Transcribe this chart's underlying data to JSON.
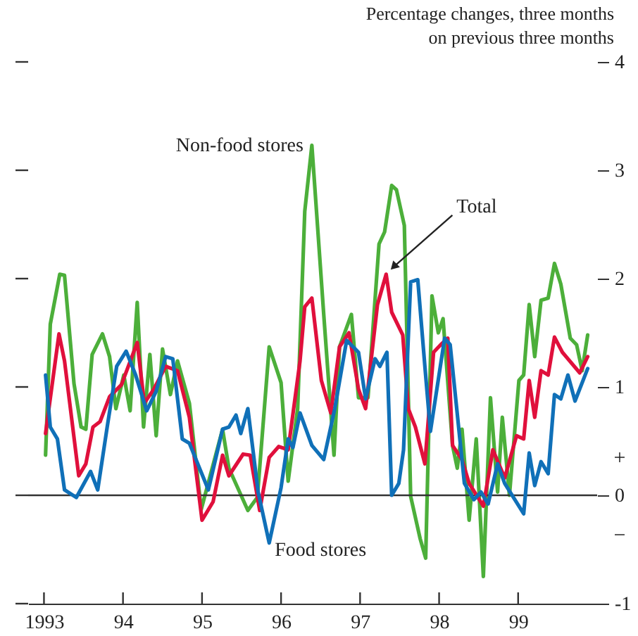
{
  "chart_data": {
    "type": "line",
    "ylabel": "Percentage changes, three months on previous three months",
    "xlim": [
      1992.8,
      2000
    ],
    "xticks": [
      1993,
      {
        "value": 1994,
        "label": "94"
      },
      {
        "value": 1995,
        "label": "95"
      },
      {
        "value": 1996,
        "label": "96"
      },
      {
        "value": 1997,
        "label": "97"
      },
      {
        "value": 1998,
        "label": "98"
      },
      {
        "value": 1999,
        "label": "99"
      }
    ],
    "ylim": [
      -1,
      4
    ],
    "yticks": [
      -1,
      0,
      1,
      2,
      3,
      4
    ],
    "grid": false,
    "marker": "none",
    "line_style": "solid",
    "ref_lines": [
      {
        "axis": "y",
        "value": 0,
        "color": "#333333"
      }
    ],
    "annotations": [
      {
        "text": "Non-food stores",
        "x": 1996.39,
        "y": 3.23
      },
      {
        "text": "Total",
        "x": 1997.33,
        "y": 2.04
      },
      {
        "text": "Food stores",
        "x": 1995.85,
        "y": -0.44
      },
      "+",
      "−"
    ],
    "series": [
      {
        "color": "#4caf3a",
        "x": [
          1993.02,
          1993.08,
          1993.2,
          1993.26,
          1993.38,
          1993.47,
          1993.53,
          1993.61,
          1993.74,
          1993.83,
          1993.91,
          1994.01,
          1994.09,
          1994.18,
          1994.26,
          1994.34,
          1994.42,
          1994.5,
          1994.6,
          1994.69,
          1994.84,
          1994.99,
          1995.26,
          1995.34,
          1995.58,
          1995.7,
          1995.85,
          1996.0,
          1996.09,
          1996.21,
          1996.3,
          1996.39,
          1996.54,
          1996.67,
          1996.74,
          1996.89,
          1996.98,
          1997.1,
          1997.24,
          1997.31,
          1997.4,
          1997.46,
          1997.56,
          1997.64,
          1997.76,
          1997.83,
          1997.91,
          1997.99,
          1998.05,
          1998.17,
          1998.23,
          1998.29,
          1998.38,
          1998.47,
          1998.56,
          1998.65,
          1998.74,
          1998.8,
          1998.89,
          1999.01,
          1999.07,
          1999.14,
          1999.21,
          1999.29,
          1999.38,
          1999.46,
          1999.54,
          1999.66,
          1999.74,
          1999.81,
          1999.88
        ],
        "values": [
          0.37,
          1.58,
          2.04,
          2.03,
          1.03,
          0.63,
          0.61,
          1.3,
          1.49,
          1.28,
          0.8,
          1.11,
          0.78,
          1.78,
          0.63,
          1.3,
          0.55,
          1.35,
          0.93,
          1.24,
          0.85,
          -0.13,
          0.61,
          0.25,
          -0.14,
          -0.02,
          1.37,
          1.04,
          0.13,
          0.8,
          2.62,
          3.23,
          1.67,
          0.37,
          1.37,
          1.67,
          0.9,
          0.9,
          2.32,
          2.43,
          2.86,
          2.82,
          2.49,
          -0.01,
          -0.4,
          -0.58,
          1.84,
          1.5,
          1.63,
          0.46,
          0.25,
          0.61,
          -0.23,
          0.52,
          -0.75,
          0.9,
          0.03,
          0.72,
          0.0,
          1.06,
          1.11,
          1.76,
          1.28,
          1.8,
          1.82,
          2.14,
          1.95,
          1.45,
          1.39,
          1.15,
          1.48
        ]
      },
      {
        "color": "#e0103c",
        "x": [
          1993.02,
          1993.19,
          1993.26,
          1993.44,
          1993.53,
          1993.62,
          1993.71,
          1993.83,
          1993.98,
          1994.18,
          1994.27,
          1994.39,
          1994.54,
          1994.69,
          1994.84,
          1995.0,
          1995.14,
          1995.26,
          1995.34,
          1995.52,
          1995.61,
          1995.73,
          1995.85,
          1995.97,
          1996.09,
          1996.24,
          1996.3,
          1996.39,
          1996.51,
          1996.63,
          1996.74,
          1996.86,
          1996.98,
          1997.07,
          1997.22,
          1997.33,
          1997.4,
          1997.54,
          1997.61,
          1997.7,
          1997.82,
          1997.93,
          1998.02,
          1998.11,
          1998.17,
          1998.29,
          1998.38,
          1998.56,
          1998.68,
          1998.83,
          1998.98,
          1999.07,
          1999.14,
          1999.21,
          1999.29,
          1999.38,
          1999.46,
          1999.56,
          1999.78,
          1999.88
        ],
        "values": [
          0.57,
          1.49,
          1.24,
          0.18,
          0.29,
          0.63,
          0.68,
          0.91,
          1.02,
          1.41,
          0.85,
          0.98,
          1.19,
          1.15,
          0.72,
          -0.23,
          -0.06,
          0.37,
          0.18,
          0.38,
          0.37,
          -0.14,
          0.35,
          0.45,
          0.42,
          1.24,
          1.74,
          1.82,
          1.06,
          0.76,
          1.37,
          1.5,
          0.98,
          0.8,
          1.76,
          2.04,
          1.69,
          1.48,
          0.8,
          0.63,
          0.29,
          1.32,
          1.39,
          1.45,
          0.46,
          0.33,
          0.11,
          -0.1,
          0.42,
          0.16,
          0.55,
          0.52,
          1.06,
          0.72,
          1.15,
          1.11,
          1.46,
          1.32,
          1.13,
          1.28
        ]
      },
      {
        "color": "#1070b8",
        "x": [
          1993.02,
          1993.08,
          1993.17,
          1993.26,
          1993.41,
          1993.59,
          1993.68,
          1993.8,
          1993.92,
          1994.04,
          1994.16,
          1994.3,
          1994.42,
          1994.54,
          1994.63,
          1994.75,
          1994.84,
          1995.08,
          1995.26,
          1995.34,
          1995.43,
          1995.49,
          1995.58,
          1995.71,
          1995.85,
          1996.0,
          1996.09,
          1996.15,
          1996.24,
          1996.39,
          1996.54,
          1996.68,
          1996.83,
          1996.98,
          1997.07,
          1997.19,
          1997.25,
          1997.34,
          1997.4,
          1997.49,
          1997.55,
          1997.64,
          1997.73,
          1997.82,
          1997.89,
          1998.07,
          1998.14,
          1998.32,
          1998.44,
          1998.53,
          1998.62,
          1998.74,
          1998.83,
          1999.07,
          1999.14,
          1999.21,
          1999.29,
          1999.38,
          1999.46,
          1999.54,
          1999.63,
          1999.72,
          1999.88
        ],
        "values": [
          1.11,
          0.63,
          0.52,
          0.05,
          -0.02,
          0.22,
          0.05,
          0.63,
          1.19,
          1.33,
          1.11,
          0.78,
          0.96,
          1.28,
          1.26,
          0.52,
          0.48,
          0.05,
          0.61,
          0.63,
          0.74,
          0.57,
          0.8,
          0.03,
          -0.44,
          0.07,
          0.52,
          0.44,
          0.76,
          0.46,
          0.33,
          0.8,
          1.43,
          1.32,
          0.89,
          1.26,
          1.19,
          1.32,
          0.0,
          0.11,
          0.42,
          1.97,
          1.99,
          1.19,
          0.59,
          1.45,
          1.39,
          0.11,
          -0.04,
          0.03,
          -0.08,
          0.29,
          0.11,
          -0.17,
          0.39,
          0.09,
          0.31,
          0.2,
          0.93,
          0.89,
          1.11,
          0.87,
          1.17
        ]
      }
    ]
  }
}
